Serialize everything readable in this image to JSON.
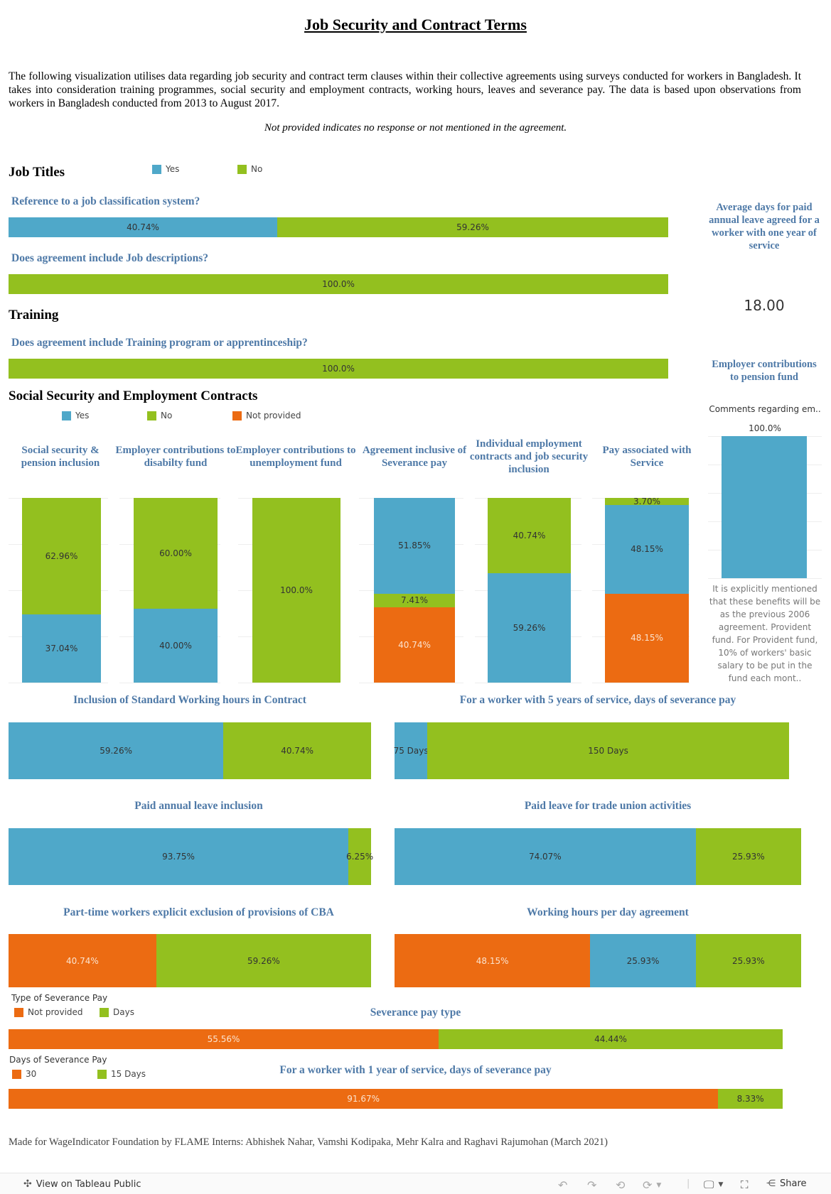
{
  "title": "Job Security and Contract Terms",
  "intro": "The following visualization utilises data regarding job security and contract term clauses within their collective agreements using surveys conducted for workers in Bangladesh. It takes into consideration training programmes, social security and employment contracts, working hours, leaves and severance pay. The data is based upon observations from workers in Bangladesh conducted from 2013 to August 2017.",
  "note": "Not provided indicates no response or not mentioned in the agreement.",
  "colors": {
    "yes": "#4fa8c9",
    "no": "#93c01f",
    "not_provided": "#ec6b12",
    "question": "#4e79a7"
  },
  "sections": {
    "job_titles": "Job Titles",
    "training": "Training",
    "social": "Social Security and Employment Contracts"
  },
  "legend_yes_no": {
    "yes": "Yes",
    "no": "No"
  },
  "legend_social": {
    "yes": "Yes",
    "no": "No",
    "not_provided": "Not provided"
  },
  "questions": {
    "job_classification": "Reference to a job classification system?",
    "job_descriptions": "Does agreement include Job descriptions?",
    "training": "Does agreement include Training program or apprentinceship?",
    "working_hours": "Inclusion of Standard Working hours in Contract",
    "severance_5yr": "For a worker with 5 years of service, days of severance pay",
    "annual_leave": "Paid annual leave inclusion",
    "trade_union_leave": "Paid leave for trade union activities",
    "part_time": "Part-time workers explicit exclusion of provisions of CBA",
    "hours_per_day": "Working hours per day agreement",
    "severance_type": "Severance pay type",
    "severance_1yr": "For a worker with 1 year of service, days of severance pay"
  },
  "kpi": {
    "title": "Average days for paid annual leave agreed for a worker with one year of service",
    "value": "18.00"
  },
  "pension": {
    "title": "Employer contributions to pension fund",
    "subtitle": "Comments regarding em..",
    "comment": "It is explicitly mentioned that these benefits will be as the previous 2006 agreement. Provident fund. For Provident fund, 10% of workers' basic salary to be put in the fund each mont.."
  },
  "severance_type_legend": {
    "title": "Type of Severance Pay",
    "a": "Not provided",
    "b": "Days"
  },
  "severance_days_legend": {
    "title": "Days of Severance Pay",
    "a": "30",
    "b": "15 Days"
  },
  "footer": "Made for WageIndicator Foundation by FLAME Interns: Abhishek Nahar, Vamshi Kodipaka, Mehr Kalra and Raghavi Rajumohan (March 2021)",
  "toolbar": {
    "view": "View on Tableau Public",
    "share": "Share"
  },
  "chart_data": [
    {
      "type": "bar",
      "orientation": "horizontal",
      "stacked": true,
      "id": "job_classification",
      "series": [
        {
          "name": "Yes",
          "value": 40.74,
          "label": "40.74%"
        },
        {
          "name": "No",
          "value": 59.26,
          "label": "59.26%"
        }
      ]
    },
    {
      "type": "bar",
      "orientation": "horizontal",
      "stacked": true,
      "id": "job_descriptions",
      "series": [
        {
          "name": "No",
          "value": 100.0,
          "label": "100.0%"
        }
      ]
    },
    {
      "type": "bar",
      "orientation": "horizontal",
      "stacked": true,
      "id": "training",
      "series": [
        {
          "name": "No",
          "value": 100.0,
          "label": "100.0%"
        }
      ]
    },
    {
      "type": "bar",
      "orientation": "vertical",
      "stacked": true,
      "id": "social_security",
      "categories": [
        "Social security & pension inclusion",
        "Employer contributions to disabilty fund",
        "Employer contributions to unemployment fund",
        "Agreement inclusive of Severance pay",
        "Individual employment contracts and job security inclusion",
        "Pay associated with Service"
      ],
      "stacks": [
        [
          {
            "name": "No",
            "value": 62.96,
            "label": "62.96%"
          },
          {
            "name": "Yes",
            "value": 37.04,
            "label": "37.04%"
          }
        ],
        [
          {
            "name": "No",
            "value": 60.0,
            "label": "60.00%"
          },
          {
            "name": "Yes",
            "value": 40.0,
            "label": "40.00%"
          }
        ],
        [
          {
            "name": "No",
            "value": 100.0,
            "label": "100.0%"
          }
        ],
        [
          {
            "name": "Yes",
            "value": 51.85,
            "label": "51.85%"
          },
          {
            "name": "No",
            "value": 7.41,
            "label": "7.41%"
          },
          {
            "name": "Not provided",
            "value": 40.74,
            "label": "40.74%"
          }
        ],
        [
          {
            "name": "No",
            "value": 40.74,
            "label": "40.74%"
          },
          {
            "name": "Yes",
            "value": 59.26,
            "label": "59.26%"
          }
        ],
        [
          {
            "name": "No",
            "value": 3.7,
            "label": "3.70%"
          },
          {
            "name": "Yes",
            "value": 48.15,
            "label": "48.15%"
          },
          {
            "name": "Not provided",
            "value": 48.15,
            "label": "48.15%"
          }
        ]
      ]
    },
    {
      "type": "bar",
      "orientation": "vertical",
      "id": "pension_fund",
      "series": [
        {
          "name": "Yes",
          "value": 100.0,
          "label": "100.0%"
        }
      ]
    },
    {
      "type": "bar",
      "orientation": "horizontal",
      "stacked": true,
      "id": "working_hours",
      "series": [
        {
          "name": "Yes",
          "value": 59.26,
          "label": "59.26%"
        },
        {
          "name": "No",
          "value": 40.74,
          "label": "40.74%"
        }
      ]
    },
    {
      "type": "bar",
      "orientation": "horizontal",
      "stacked": true,
      "id": "severance_5yr",
      "series": [
        {
          "name": "75 Days",
          "value": 8.33,
          "label": "75 Days"
        },
        {
          "name": "150 Days",
          "value": 91.67,
          "label": "150 Days"
        }
      ]
    },
    {
      "type": "bar",
      "orientation": "horizontal",
      "stacked": true,
      "id": "annual_leave",
      "series": [
        {
          "name": "Yes",
          "value": 93.75,
          "label": "93.75%"
        },
        {
          "name": "No",
          "value": 6.25,
          "label": "6.25%"
        }
      ]
    },
    {
      "type": "bar",
      "orientation": "horizontal",
      "stacked": true,
      "id": "trade_union_leave",
      "series": [
        {
          "name": "Yes",
          "value": 74.07,
          "label": "74.07%"
        },
        {
          "name": "No",
          "value": 25.93,
          "label": "25.93%"
        }
      ]
    },
    {
      "type": "bar",
      "orientation": "horizontal",
      "stacked": true,
      "id": "part_time",
      "series": [
        {
          "name": "Not provided",
          "value": 40.74,
          "label": "40.74%"
        },
        {
          "name": "No",
          "value": 59.26,
          "label": "59.26%"
        }
      ]
    },
    {
      "type": "bar",
      "orientation": "horizontal",
      "stacked": true,
      "id": "hours_per_day",
      "series": [
        {
          "name": "Not provided",
          "value": 48.15,
          "label": "48.15%"
        },
        {
          "name": "Yes",
          "value": 25.93,
          "label": "25.93%"
        },
        {
          "name": "No",
          "value": 25.93,
          "label": "25.93%"
        }
      ]
    },
    {
      "type": "bar",
      "orientation": "horizontal",
      "stacked": true,
      "id": "severance_type",
      "series": [
        {
          "name": "Not provided",
          "value": 55.56,
          "label": "55.56%"
        },
        {
          "name": "Days",
          "value": 44.44,
          "label": "44.44%"
        }
      ]
    },
    {
      "type": "bar",
      "orientation": "horizontal",
      "stacked": true,
      "id": "severance_1yr",
      "series": [
        {
          "name": "30",
          "value": 91.67,
          "label": "91.67%"
        },
        {
          "name": "15 Days",
          "value": 8.33,
          "label": "8.33%"
        }
      ]
    }
  ]
}
